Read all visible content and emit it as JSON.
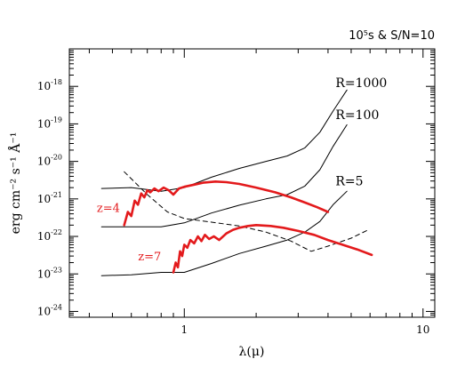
{
  "chart_data": {
    "type": "line",
    "title": "10⁵s & S/N=10",
    "xlabel": "λ(μ)",
    "ylabel": "erg cm⁻² s⁻¹ Å⁻¹",
    "xscale": "log",
    "yscale": "log",
    "xlim": [
      0.33,
      11.2
    ],
    "ylim": [
      7e-25,
      1e-17
    ],
    "xticks": [
      {
        "value": 1,
        "label": "1"
      },
      {
        "value": 10,
        "label": "10"
      }
    ],
    "yticks": [
      {
        "value": 1e-18,
        "base": "10",
        "exp": "-18"
      },
      {
        "value": 1e-19,
        "base": "10",
        "exp": "-19"
      },
      {
        "value": 1e-20,
        "base": "10",
        "exp": "-20"
      },
      {
        "value": 1e-21,
        "base": "10",
        "exp": "-21"
      },
      {
        "value": 1e-22,
        "base": "10",
        "exp": "-22"
      },
      {
        "value": 1e-23,
        "base": "10",
        "exp": "-23"
      },
      {
        "value": 1e-24,
        "base": "10",
        "exp": "-24"
      }
    ],
    "grid": false,
    "legend": "none",
    "series": [
      {
        "name": "R=1000",
        "color": "#000000",
        "style": "solid",
        "x": [
          0.45,
          0.6,
          0.8,
          1.0,
          1.3,
          1.7,
          2.2,
          2.7,
          3.2,
          3.7,
          4.2,
          4.8
        ],
        "y": [
          1.9e-21,
          2e-21,
          1.6e-21,
          2e-21,
          3.8e-21,
          6.5e-21,
          1e-20,
          1.4e-20,
          2.3e-20,
          6e-20,
          2.2e-19,
          8e-19
        ]
      },
      {
        "name": "R=100",
        "color": "#000000",
        "style": "solid",
        "x": [
          0.45,
          0.6,
          0.8,
          1.0,
          1.3,
          1.7,
          2.2,
          2.7,
          3.2,
          3.7,
          4.2,
          4.8
        ],
        "y": [
          1.8e-22,
          1.8e-22,
          1.8e-22,
          2.3e-22,
          4.2e-22,
          6.8e-22,
          1e-21,
          1.3e-21,
          2.2e-21,
          6e-21,
          2.5e-20,
          9.5e-20
        ]
      },
      {
        "name": "R=5",
        "color": "#000000",
        "style": "solid",
        "x": [
          0.45,
          0.6,
          0.8,
          1.0,
          1.3,
          1.7,
          2.2,
          2.7,
          3.2,
          3.7,
          4.2,
          4.8
        ],
        "y": [
          9e-24,
          9.5e-24,
          1.1e-23,
          1.1e-23,
          1.9e-23,
          3.5e-23,
          5.5e-23,
          8e-23,
          1.3e-22,
          2.5e-22,
          7e-22,
          1.6e-21
        ]
      },
      {
        "name": "",
        "color": "#000000",
        "style": "dashed",
        "x": [
          0.56,
          0.7,
          0.85,
          1.0,
          1.3,
          1.7,
          2.2,
          2.8,
          3.4,
          4.0,
          5.0,
          5.9
        ],
        "y": [
          5.3e-21,
          1.3e-21,
          4.5e-22,
          3e-22,
          2.4e-22,
          1.9e-22,
          1.3e-22,
          7.5e-23,
          4e-23,
          5.5e-23,
          9e-23,
          1.5e-22
        ]
      },
      {
        "name": "z=4",
        "color": "#e31a1c",
        "style": "solid-thick",
        "x": [
          0.56,
          0.58,
          0.6,
          0.62,
          0.64,
          0.66,
          0.68,
          0.7,
          0.72,
          0.75,
          0.78,
          0.82,
          0.86,
          0.9,
          0.95,
          1.0,
          1.1,
          1.2,
          1.35,
          1.5,
          1.7,
          2.0,
          2.4,
          2.8,
          3.2,
          3.6,
          4.0
        ],
        "y": [
          2e-22,
          4.5e-22,
          3.5e-22,
          9e-22,
          7e-22,
          1.4e-21,
          1.1e-21,
          1.7e-21,
          1.5e-21,
          1.9e-21,
          1.6e-21,
          2e-21,
          1.7e-21,
          1.3e-21,
          1.9e-21,
          2.1e-21,
          2.4e-21,
          2.7e-21,
          2.9e-21,
          2.8e-21,
          2.5e-21,
          2e-21,
          1.5e-21,
          1.1e-21,
          8e-22,
          6e-22,
          4.5e-22
        ]
      },
      {
        "name": "z=7",
        "color": "#e31a1c",
        "style": "solid-thick",
        "x": [
          0.9,
          0.92,
          0.94,
          0.96,
          0.98,
          1.0,
          1.03,
          1.06,
          1.1,
          1.14,
          1.18,
          1.22,
          1.27,
          1.33,
          1.4,
          1.5,
          1.6,
          1.7,
          1.85,
          2.0,
          2.3,
          2.6,
          3.0,
          3.5,
          4.0,
          4.6,
          5.3,
          6.1
        ],
        "y": [
          1.1e-23,
          2e-23,
          1.5e-23,
          4e-23,
          3e-23,
          6e-23,
          5e-23,
          8e-23,
          6.5e-23,
          1e-22,
          7.5e-23,
          1.1e-22,
          8.5e-23,
          1e-22,
          8e-23,
          1.2e-22,
          1.5e-22,
          1.7e-22,
          1.9e-22,
          2e-22,
          1.9e-22,
          1.7e-22,
          1.4e-22,
          1.1e-22,
          8e-23,
          6e-23,
          4.5e-23,
          3.2e-23
        ]
      }
    ],
    "annotations": [
      {
        "text": "R=1000",
        "x": 4.3,
        "y": 9.5e-19,
        "color": "#000000"
      },
      {
        "text": "R=100",
        "x": 4.3,
        "y": 1.35e-19,
        "color": "#000000"
      },
      {
        "text": "R=5",
        "x": 4.3,
        "y": 2.3e-21,
        "color": "#000000"
      },
      {
        "text": "z=4",
        "x": 0.43,
        "y": 4.5e-22,
        "color": "#e31a1c"
      },
      {
        "text": "z=7",
        "x": 0.64,
        "y": 2.3e-23,
        "color": "#e31a1c"
      }
    ]
  }
}
